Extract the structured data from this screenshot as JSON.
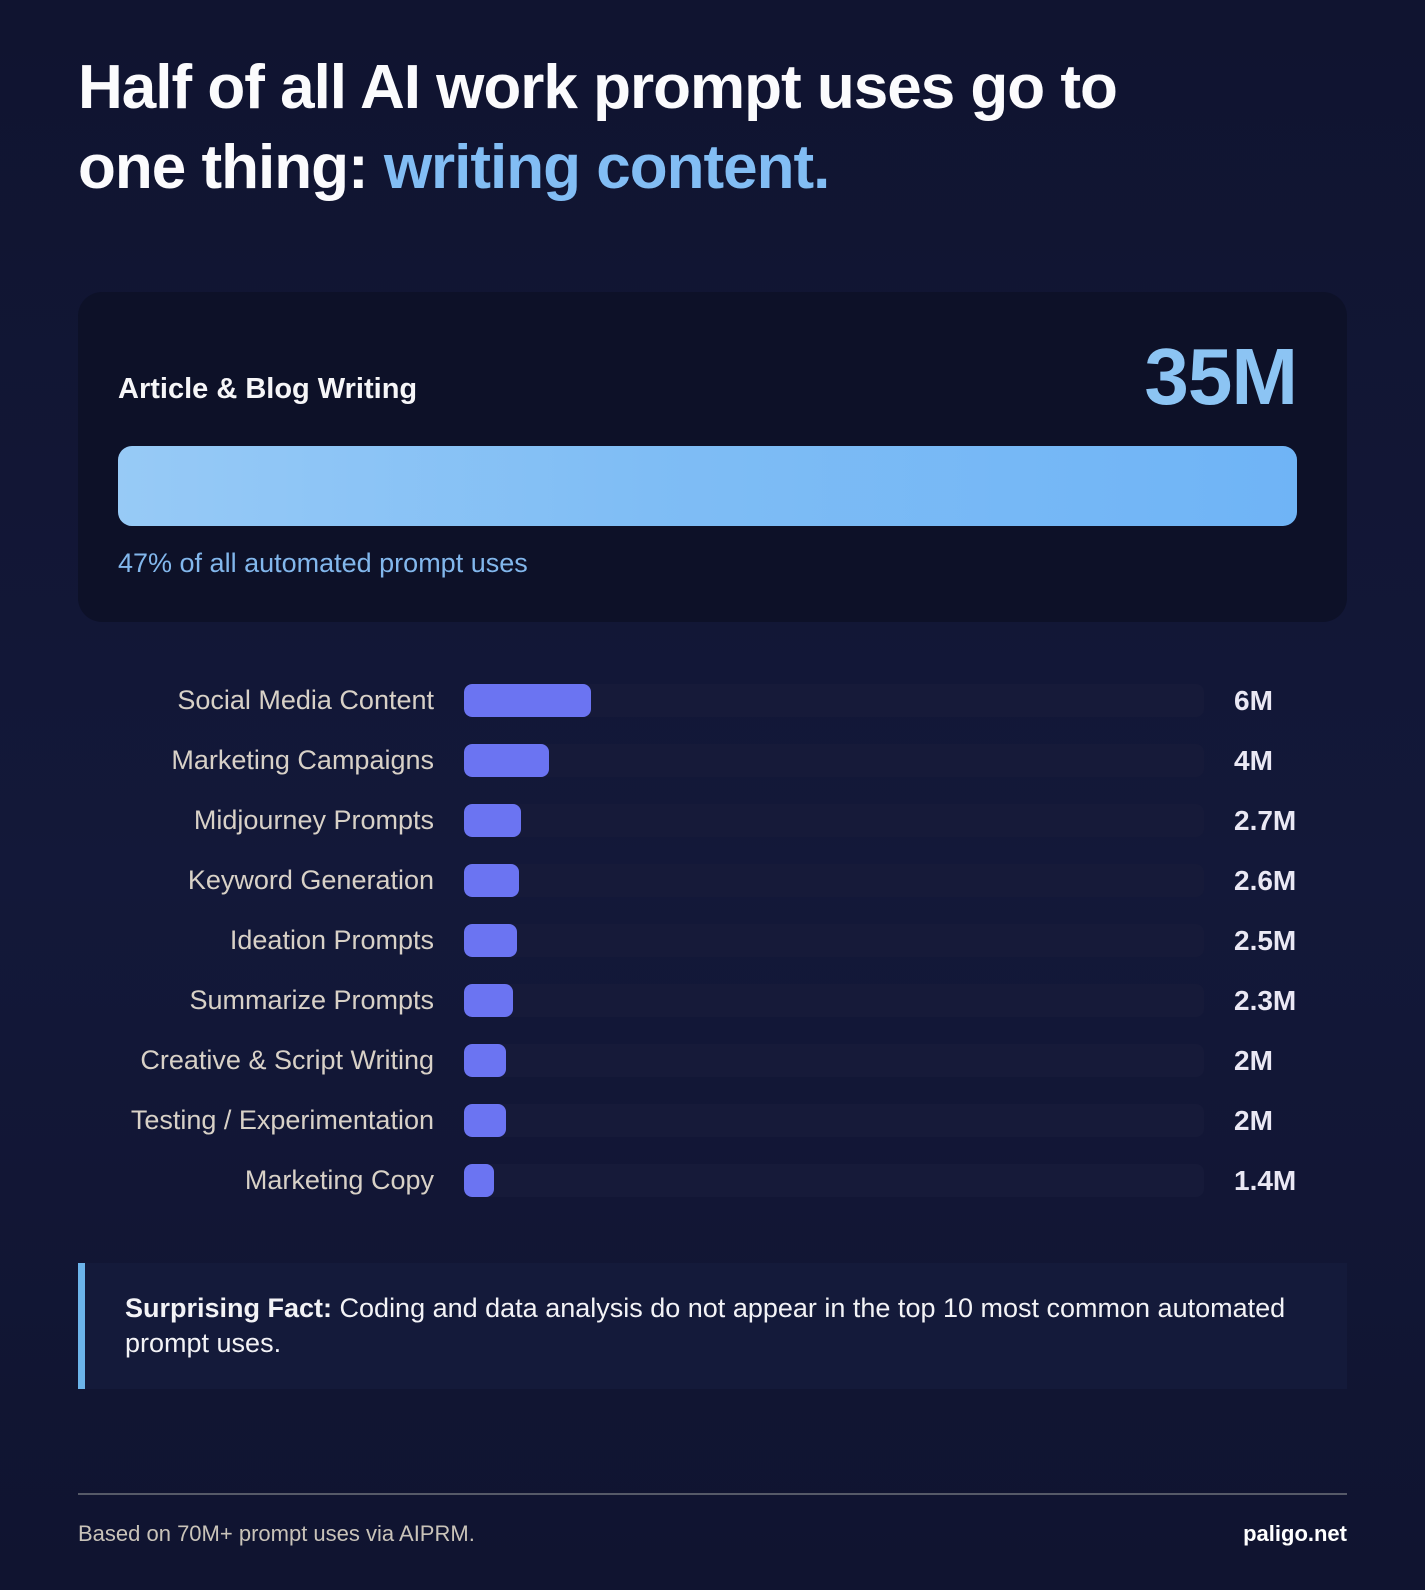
{
  "title": {
    "line1": "Half of all AI work prompt uses go to",
    "line2_prefix": "one thing: ",
    "line2_accent": "writing content."
  },
  "chart_data": {
    "type": "bar",
    "orientation": "horizontal",
    "title": "Half of all AI work prompt uses go to one thing: writing content.",
    "unit": "M prompt uses",
    "max_value": 35,
    "featured": {
      "category": "Article & Blog Writing",
      "value": 35,
      "value_label": "35M",
      "share_caption": "47% of all automated prompt uses"
    },
    "categories": [
      "Social Media Content",
      "Marketing Campaigns",
      "Midjourney Prompts",
      "Keyword Generation",
      "Ideation Prompts",
      "Summarize Prompts",
      "Creative & Script Writing",
      "Testing / Experimentation",
      "Marketing Copy"
    ],
    "values": [
      6,
      4,
      2.7,
      2.6,
      2.5,
      2.3,
      2,
      2,
      1.4
    ],
    "value_labels": [
      "6M",
      "4M",
      "2.7M",
      "2.6M",
      "2.5M",
      "2.3M",
      "2M",
      "2M",
      "1.4M"
    ],
    "legend": null,
    "grid": false
  },
  "callout": {
    "bold_prefix": "Surprising Fact:",
    "text": " Coding and data analysis do not appear in the top 10 most common automated prompt uses."
  },
  "footer": {
    "source": "Based on 70M+ prompt uses via AIPRM.",
    "brand": "paligo.net"
  },
  "colors": {
    "page_background": "#121735",
    "card_background": "#0d1128",
    "title_accent": "#82bdf4",
    "featured_value": "#8cc4f3",
    "featured_bar_gradient_start": "#97caf6",
    "featured_bar_gradient_end": "#6fb4f6",
    "featured_caption": "#82b7ec",
    "bar_fill": "#6b74f2",
    "bar_track": "#161a39",
    "bar_label": "#d8d1c7",
    "bar_value": "#eae8f4",
    "callout_border": "#6cb4ea",
    "callout_background": "#141a3a",
    "footer_source": "#c9c3b9"
  }
}
